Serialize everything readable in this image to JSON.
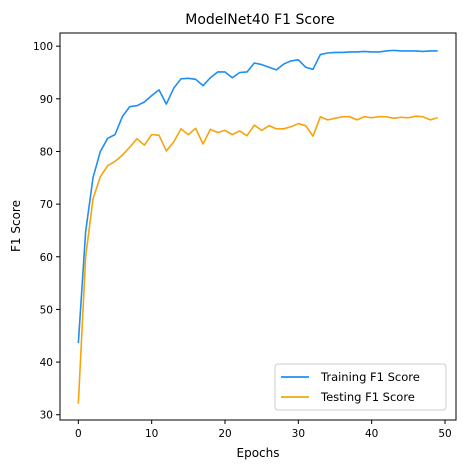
{
  "chart_data": {
    "type": "line",
    "title": "ModelNet40 F1 Score",
    "xlabel": "Epochs",
    "ylabel": "F1 Score",
    "xlim": [
      -2.5,
      51.5
    ],
    "ylim": [
      29,
      102.5
    ],
    "x_ticks": [
      0,
      10,
      20,
      30,
      40,
      50
    ],
    "y_ticks": [
      30,
      40,
      50,
      60,
      70,
      80,
      90,
      100
    ],
    "grid": false,
    "legend_position": "lower-right",
    "x": [
      0,
      1,
      2,
      3,
      4,
      5,
      6,
      7,
      8,
      9,
      10,
      11,
      12,
      13,
      14,
      15,
      16,
      17,
      18,
      19,
      20,
      21,
      22,
      23,
      24,
      25,
      26,
      27,
      28,
      29,
      30,
      31,
      32,
      33,
      34,
      35,
      36,
      37,
      38,
      39,
      40,
      41,
      42,
      43,
      44,
      45,
      46,
      47,
      48,
      49
    ],
    "series": [
      {
        "name": "Training F1 Score",
        "color": "#1f8ef1",
        "values": [
          43.6,
          64.8,
          75.0,
          80.0,
          82.5,
          83.2,
          86.6,
          88.5,
          88.7,
          89.4,
          90.6,
          91.7,
          89.0,
          92.0,
          93.8,
          93.9,
          93.7,
          92.5,
          94.0,
          95.1,
          95.1,
          94.0,
          95.0,
          95.1,
          96.8,
          96.5,
          96.0,
          95.5,
          96.6,
          97.2,
          97.4,
          96.0,
          95.6,
          98.4,
          98.7,
          98.8,
          98.8,
          98.9,
          98.9,
          99.0,
          98.9,
          98.9,
          99.1,
          99.2,
          99.1,
          99.1,
          99.1,
          99.0,
          99.1,
          99.1
        ]
      },
      {
        "name": "Testing F1 Score",
        "color": "#f5a40c",
        "values": [
          32.1,
          60.0,
          71.0,
          75.2,
          77.3,
          78.1,
          79.3,
          80.8,
          82.4,
          81.2,
          83.2,
          83.1,
          80.1,
          81.8,
          84.3,
          83.2,
          84.4,
          81.4,
          84.2,
          83.6,
          84.0,
          83.2,
          83.9,
          83.0,
          85.0,
          84.0,
          84.9,
          84.3,
          84.3,
          84.7,
          85.3,
          84.9,
          82.9,
          86.6,
          86.0,
          86.3,
          86.6,
          86.6,
          86.0,
          86.6,
          86.4,
          86.6,
          86.6,
          86.3,
          86.5,
          86.4,
          86.7,
          86.6,
          86.0,
          86.4
        ]
      }
    ]
  }
}
